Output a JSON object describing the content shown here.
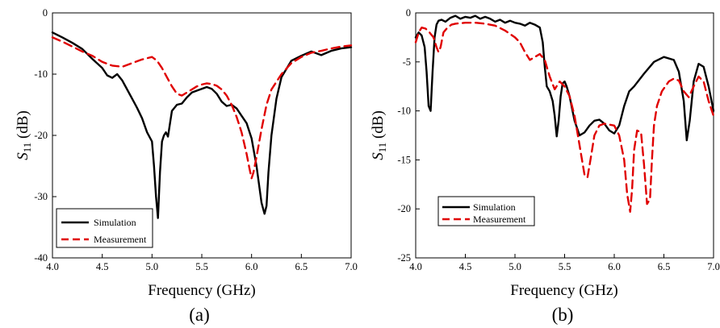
{
  "chart_data": [
    {
      "type": "line",
      "panel_label": "(a)",
      "xlabel": "Frequency (GHz)",
      "ylabel": {
        "base": "S",
        "sub": "11",
        "rest": " (dB)"
      },
      "xlim": [
        4.0,
        7.0
      ],
      "ylim": [
        -40,
        0
      ],
      "xticks": [
        4.0,
        4.5,
        5.0,
        5.5,
        6.0,
        6.5,
        7.0
      ],
      "xtick_labels": [
        "4.0",
        "4.5",
        "5.0",
        "5.5",
        "6.0",
        "6.5",
        "7.0"
      ],
      "yticks": [
        0,
        -10,
        -20,
        -30,
        -40
      ],
      "ytick_labels": [
        "0",
        "-10",
        "-20",
        "-30",
        "-40"
      ],
      "grid": false,
      "legend_position": "bottom-left",
      "series": [
        {
          "name": "Simulation",
          "color": "#000000",
          "style": "solid",
          "x": [
            4.0,
            4.1,
            4.2,
            4.3,
            4.4,
            4.5,
            4.55,
            4.6,
            4.65,
            4.7,
            4.75,
            4.8,
            4.85,
            4.9,
            4.95,
            5.0,
            5.02,
            5.04,
            5.06,
            5.08,
            5.1,
            5.12,
            5.14,
            5.16,
            5.2,
            5.25,
            5.3,
            5.35,
            5.4,
            5.45,
            5.5,
            5.55,
            5.6,
            5.65,
            5.7,
            5.75,
            5.8,
            5.85,
            5.9,
            5.95,
            6.0,
            6.05,
            6.1,
            6.13,
            6.15,
            6.17,
            6.2,
            6.25,
            6.3,
            6.4,
            6.5,
            6.6,
            6.7,
            6.8,
            6.9,
            7.0
          ],
          "y": [
            -3.2,
            -4.0,
            -4.9,
            -5.9,
            -7.5,
            -9.0,
            -10.2,
            -10.6,
            -10.0,
            -11.0,
            -12.5,
            -14.0,
            -15.5,
            -17.2,
            -19.5,
            -21.0,
            -25.0,
            -30.0,
            -33.5,
            -26.0,
            -21.0,
            -20.0,
            -19.5,
            -20.2,
            -16.0,
            -15.0,
            -14.8,
            -13.8,
            -13.0,
            -12.7,
            -12.4,
            -12.1,
            -12.4,
            -13.2,
            -14.5,
            -15.2,
            -15.0,
            -15.6,
            -16.8,
            -18.0,
            -20.5,
            -25.0,
            -31.0,
            -32.8,
            -31.5,
            -26.0,
            -20.0,
            -14.0,
            -10.5,
            -7.8,
            -7.0,
            -6.3,
            -6.9,
            -6.2,
            -5.8,
            -5.6
          ]
        },
        {
          "name": "Measurement",
          "color": "#e00000",
          "style": "dashed",
          "x": [
            4.0,
            4.1,
            4.2,
            4.3,
            4.4,
            4.5,
            4.6,
            4.7,
            4.8,
            4.9,
            5.0,
            5.05,
            5.1,
            5.15,
            5.2,
            5.25,
            5.3,
            5.35,
            5.4,
            5.45,
            5.5,
            5.55,
            5.6,
            5.65,
            5.7,
            5.75,
            5.8,
            5.85,
            5.9,
            5.95,
            5.98,
            6.0,
            6.02,
            6.05,
            6.1,
            6.15,
            6.2,
            6.3,
            6.4,
            6.5,
            6.6,
            6.7,
            6.8,
            6.9,
            7.0
          ],
          "y": [
            -4.0,
            -4.7,
            -5.5,
            -6.3,
            -7.0,
            -8.0,
            -8.6,
            -8.8,
            -8.2,
            -7.6,
            -7.2,
            -7.8,
            -9.0,
            -10.5,
            -12.0,
            -13.2,
            -13.5,
            -13.0,
            -12.5,
            -12.0,
            -11.7,
            -11.5,
            -11.6,
            -11.9,
            -12.5,
            -13.5,
            -15.0,
            -17.0,
            -19.5,
            -23.0,
            -25.5,
            -27.0,
            -26.0,
            -23.5,
            -19.0,
            -15.0,
            -12.5,
            -10.0,
            -8.2,
            -7.2,
            -6.5,
            -6.2,
            -5.8,
            -5.5,
            -5.3
          ]
        }
      ]
    },
    {
      "type": "line",
      "panel_label": "(b)",
      "xlabel": "Frequency (GHz)",
      "ylabel": {
        "base": "S",
        "sub": "11",
        "rest": " (dB)"
      },
      "xlim": [
        4.0,
        7.0
      ],
      "ylim": [
        -25,
        0
      ],
      "xticks": [
        4.0,
        4.5,
        5.0,
        5.5,
        6.0,
        6.5,
        7.0
      ],
      "xtick_labels": [
        "4.0",
        "4.5",
        "5.0",
        "5.5",
        "6.0",
        "6.5",
        "7.0"
      ],
      "yticks": [
        0,
        -5,
        -10,
        -15,
        -20,
        -25
      ],
      "ytick_labels": [
        "0",
        "-5",
        "-10",
        "-15",
        "-20",
        "-25"
      ],
      "grid": false,
      "legend_position": "bottom-left",
      "series": [
        {
          "name": "Simulation",
          "color": "#000000",
          "style": "solid",
          "x": [
            4.0,
            4.03,
            4.06,
            4.09,
            4.11,
            4.13,
            4.15,
            4.17,
            4.19,
            4.21,
            4.23,
            4.26,
            4.3,
            4.35,
            4.4,
            4.45,
            4.5,
            4.55,
            4.6,
            4.65,
            4.7,
            4.75,
            4.8,
            4.85,
            4.9,
            4.95,
            5.0,
            5.05,
            5.1,
            5.15,
            5.2,
            5.25,
            5.28,
            5.3,
            5.32,
            5.35,
            5.38,
            5.4,
            5.42,
            5.44,
            5.46,
            5.48,
            5.5,
            5.52,
            5.55,
            5.6,
            5.65,
            5.7,
            5.75,
            5.8,
            5.85,
            5.9,
            5.95,
            6.0,
            6.05,
            6.1,
            6.15,
            6.2,
            6.3,
            6.4,
            6.5,
            6.6,
            6.65,
            6.7,
            6.73,
            6.76,
            6.8,
            6.85,
            6.9,
            6.95,
            7.0
          ],
          "y": [
            -2.5,
            -2.0,
            -2.3,
            -3.5,
            -6.0,
            -9.5,
            -10.0,
            -6.0,
            -2.5,
            -1.2,
            -0.8,
            -0.7,
            -0.9,
            -0.5,
            -0.3,
            -0.6,
            -0.4,
            -0.5,
            -0.3,
            -0.6,
            -0.4,
            -0.6,
            -0.9,
            -0.7,
            -1.0,
            -0.8,
            -1.0,
            -1.1,
            -1.3,
            -1.0,
            -1.2,
            -1.5,
            -3.0,
            -5.5,
            -7.5,
            -8.0,
            -9.0,
            -10.5,
            -12.6,
            -11.0,
            -8.5,
            -7.2,
            -7.0,
            -7.5,
            -8.5,
            -11.0,
            -12.5,
            -12.2,
            -11.5,
            -11.0,
            -10.9,
            -11.3,
            -12.0,
            -12.3,
            -11.5,
            -9.5,
            -8.0,
            -7.5,
            -6.2,
            -5.0,
            -4.5,
            -4.8,
            -6.0,
            -9.0,
            -13.0,
            -11.0,
            -7.0,
            -5.2,
            -5.5,
            -7.5,
            -10.0
          ]
        },
        {
          "name": "Measurement",
          "color": "#e00000",
          "style": "dashed",
          "x": [
            4.0,
            4.03,
            4.06,
            4.1,
            4.14,
            4.18,
            4.21,
            4.23,
            4.25,
            4.28,
            4.32,
            4.36,
            4.4,
            4.5,
            4.6,
            4.7,
            4.8,
            4.9,
            5.0,
            5.05,
            5.1,
            5.15,
            5.2,
            5.25,
            5.3,
            5.35,
            5.4,
            5.45,
            5.5,
            5.55,
            5.6,
            5.65,
            5.7,
            5.73,
            5.76,
            5.8,
            5.85,
            5.9,
            6.0,
            6.05,
            6.1,
            6.13,
            6.16,
            6.18,
            6.2,
            6.23,
            6.27,
            6.3,
            6.33,
            6.36,
            6.38,
            6.4,
            6.43,
            6.48,
            6.55,
            6.6,
            6.65,
            6.7,
            6.75,
            6.8,
            6.85,
            6.9,
            6.95,
            7.0
          ],
          "y": [
            -3.0,
            -2.0,
            -1.5,
            -1.6,
            -2.0,
            -2.5,
            -3.5,
            -4.0,
            -3.5,
            -2.0,
            -1.5,
            -1.2,
            -1.1,
            -1.0,
            -1.0,
            -1.1,
            -1.3,
            -1.8,
            -2.5,
            -3.0,
            -4.0,
            -4.8,
            -4.5,
            -4.2,
            -4.8,
            -6.5,
            -7.8,
            -7.0,
            -7.5,
            -8.5,
            -10.5,
            -13.5,
            -16.5,
            -16.8,
            -15.0,
            -12.5,
            -11.5,
            -11.3,
            -11.5,
            -12.5,
            -15.0,
            -18.5,
            -20.3,
            -18.0,
            -14.0,
            -12.0,
            -12.2,
            -15.5,
            -19.5,
            -19.0,
            -15.0,
            -11.5,
            -9.5,
            -8.0,
            -7.0,
            -6.7,
            -6.9,
            -8.0,
            -8.6,
            -7.5,
            -6.5,
            -7.0,
            -9.0,
            -10.5
          ]
        }
      ]
    }
  ]
}
